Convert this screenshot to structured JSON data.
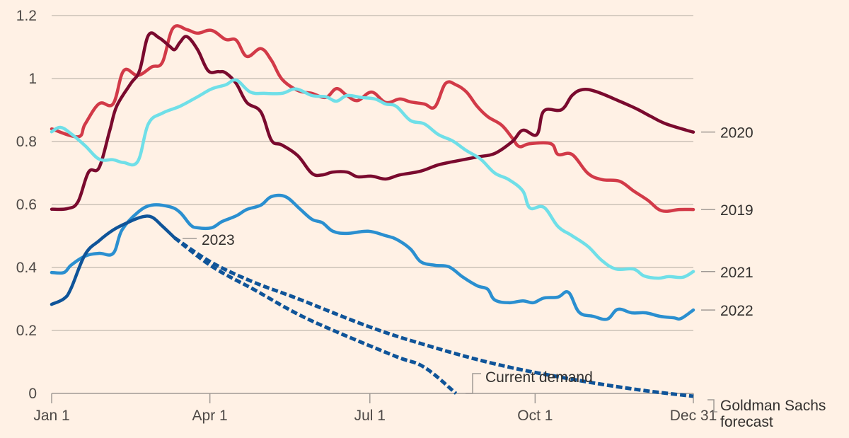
{
  "chart_data": {
    "type": "line",
    "title": "",
    "xlabel": "",
    "ylabel": "",
    "x_unit": "day of year",
    "xlim": [
      0,
      365
    ],
    "ylim": [
      0,
      1.2
    ],
    "grid": true,
    "y_ticks": [
      {
        "value": 0,
        "label": "0"
      },
      {
        "value": 0.2,
        "label": "0.2"
      },
      {
        "value": 0.4,
        "label": "0.4"
      },
      {
        "value": 0.6,
        "label": "0.6"
      },
      {
        "value": 0.8,
        "label": "0.8"
      },
      {
        "value": 1.0,
        "label": "1"
      },
      {
        "value": 1.2,
        "label": "1.2"
      }
    ],
    "x_ticks": [
      {
        "value": 0,
        "label": "Jan 1"
      },
      {
        "value": 90,
        "label": "Apr 1"
      },
      {
        "value": 181,
        "label": "Jul 1"
      },
      {
        "value": 275,
        "label": "Oct 1"
      },
      {
        "value": 365,
        "label": "Dec 31"
      }
    ],
    "legend": "direct labels at line ends (right)",
    "series": [
      {
        "name": "2019",
        "label": "2019",
        "color": "#d23a48",
        "style": "solid",
        "points": [
          [
            0,
            0.84
          ],
          [
            15,
            0.815
          ],
          [
            19,
            0.855
          ],
          [
            27,
            0.92
          ],
          [
            35,
            0.92
          ],
          [
            41,
            1.025
          ],
          [
            49,
            1.01
          ],
          [
            57,
            1.037
          ],
          [
            63,
            1.052
          ],
          [
            69,
            1.16
          ],
          [
            77,
            1.155
          ],
          [
            83,
            1.144
          ],
          [
            91,
            1.153
          ],
          [
            99,
            1.124
          ],
          [
            105,
            1.122
          ],
          [
            111,
            1.07
          ],
          [
            119,
            1.095
          ],
          [
            125,
            1.058
          ],
          [
            131,
            0.998
          ],
          [
            140,
            0.962
          ],
          [
            148,
            0.953
          ],
          [
            156,
            0.94
          ],
          [
            162,
            0.968
          ],
          [
            168,
            0.946
          ],
          [
            174,
            0.93
          ],
          [
            182,
            0.957
          ],
          [
            190,
            0.924
          ],
          [
            198,
            0.935
          ],
          [
            204,
            0.926
          ],
          [
            212,
            0.919
          ],
          [
            218,
            0.91
          ],
          [
            224,
            0.984
          ],
          [
            230,
            0.98
          ],
          [
            236,
            0.957
          ],
          [
            242,
            0.912
          ],
          [
            248,
            0.879
          ],
          [
            256,
            0.852
          ],
          [
            262,
            0.811
          ],
          [
            266,
            0.784
          ],
          [
            272,
            0.793
          ],
          [
            284,
            0.793
          ],
          [
            288,
            0.759
          ],
          [
            296,
            0.759
          ],
          [
            305,
            0.699
          ],
          [
            313,
            0.679
          ],
          [
            323,
            0.674
          ],
          [
            331,
            0.643
          ],
          [
            339,
            0.614
          ],
          [
            347,
            0.58
          ],
          [
            357,
            0.584
          ],
          [
            365,
            0.584
          ]
        ]
      },
      {
        "name": "2020",
        "label": "2020",
        "color": "#7a0a2e",
        "style": "solid",
        "points": [
          [
            0,
            0.585
          ],
          [
            9,
            0.587
          ],
          [
            15,
            0.609
          ],
          [
            21,
            0.703
          ],
          [
            27,
            0.717
          ],
          [
            33,
            0.834
          ],
          [
            37,
            0.912
          ],
          [
            45,
            0.984
          ],
          [
            50,
            1.025
          ],
          [
            55,
            1.137
          ],
          [
            61,
            1.13
          ],
          [
            67,
            1.103
          ],
          [
            70,
            1.092
          ],
          [
            73,
            1.115
          ],
          [
            77,
            1.133
          ],
          [
            83,
            1.092
          ],
          [
            89,
            1.025
          ],
          [
            95,
            1.022
          ],
          [
            99,
            1.018
          ],
          [
            105,
            0.984
          ],
          [
            111,
            0.924
          ],
          [
            119,
            0.894
          ],
          [
            125,
            0.804
          ],
          [
            131,
            0.789
          ],
          [
            140,
            0.755
          ],
          [
            148,
            0.699
          ],
          [
            154,
            0.694
          ],
          [
            160,
            0.703
          ],
          [
            168,
            0.703
          ],
          [
            174,
            0.688
          ],
          [
            182,
            0.69
          ],
          [
            190,
            0.681
          ],
          [
            198,
            0.694
          ],
          [
            210,
            0.706
          ],
          [
            220,
            0.726
          ],
          [
            232,
            0.74
          ],
          [
            242,
            0.751
          ],
          [
            252,
            0.762
          ],
          [
            262,
            0.8
          ],
          [
            268,
            0.836
          ],
          [
            276,
            0.822
          ],
          [
            280,
            0.897
          ],
          [
            290,
            0.901
          ],
          [
            296,
            0.946
          ],
          [
            302,
            0.965
          ],
          [
            310,
            0.958
          ],
          [
            323,
            0.928
          ],
          [
            333,
            0.903
          ],
          [
            341,
            0.879
          ],
          [
            349,
            0.857
          ],
          [
            361,
            0.836
          ],
          [
            365,
            0.83
          ]
        ]
      },
      {
        "name": "2021",
        "label": "2021",
        "color": "#6fdfe8",
        "style": "solid",
        "points": [
          [
            0,
            0.831
          ],
          [
            5,
            0.845
          ],
          [
            11,
            0.825
          ],
          [
            19,
            0.787
          ],
          [
            27,
            0.744
          ],
          [
            35,
            0.742
          ],
          [
            41,
            0.733
          ],
          [
            49,
            0.737
          ],
          [
            55,
            0.856
          ],
          [
            63,
            0.89
          ],
          [
            73,
            0.912
          ],
          [
            83,
            0.942
          ],
          [
            91,
            0.967
          ],
          [
            99,
            0.98
          ],
          [
            105,
            0.995
          ],
          [
            113,
            0.957
          ],
          [
            121,
            0.953
          ],
          [
            131,
            0.953
          ],
          [
            139,
            0.967
          ],
          [
            148,
            0.946
          ],
          [
            156,
            0.942
          ],
          [
            162,
            0.928
          ],
          [
            168,
            0.946
          ],
          [
            176,
            0.94
          ],
          [
            184,
            0.935
          ],
          [
            190,
            0.919
          ],
          [
            196,
            0.912
          ],
          [
            204,
            0.867
          ],
          [
            212,
            0.856
          ],
          [
            220,
            0.822
          ],
          [
            228,
            0.802
          ],
          [
            236,
            0.771
          ],
          [
            244,
            0.744
          ],
          [
            252,
            0.7
          ],
          [
            260,
            0.679
          ],
          [
            268,
            0.643
          ],
          [
            272,
            0.589
          ],
          [
            280,
            0.591
          ],
          [
            288,
            0.53
          ],
          [
            296,
            0.501
          ],
          [
            305,
            0.467
          ],
          [
            313,
            0.422
          ],
          [
            321,
            0.395
          ],
          [
            331,
            0.395
          ],
          [
            337,
            0.373
          ],
          [
            345,
            0.366
          ],
          [
            351,
            0.371
          ],
          [
            359,
            0.369
          ],
          [
            365,
            0.387
          ]
        ]
      },
      {
        "name": "2022",
        "label": "2022",
        "color": "#2a8fd0",
        "style": "solid",
        "points": [
          [
            0,
            0.384
          ],
          [
            7,
            0.384
          ],
          [
            11,
            0.407
          ],
          [
            19,
            0.436
          ],
          [
            27,
            0.445
          ],
          [
            35,
            0.445
          ],
          [
            40,
            0.519
          ],
          [
            49,
            0.575
          ],
          [
            57,
            0.598
          ],
          [
            67,
            0.593
          ],
          [
            73,
            0.575
          ],
          [
            79,
            0.535
          ],
          [
            83,
            0.526
          ],
          [
            91,
            0.526
          ],
          [
            97,
            0.546
          ],
          [
            105,
            0.564
          ],
          [
            111,
            0.584
          ],
          [
            119,
            0.598
          ],
          [
            125,
            0.625
          ],
          [
            133,
            0.625
          ],
          [
            141,
            0.587
          ],
          [
            148,
            0.553
          ],
          [
            154,
            0.542
          ],
          [
            160,
            0.515
          ],
          [
            168,
            0.508
          ],
          [
            180,
            0.515
          ],
          [
            190,
            0.501
          ],
          [
            196,
            0.49
          ],
          [
            204,
            0.459
          ],
          [
            210,
            0.418
          ],
          [
            218,
            0.407
          ],
          [
            226,
            0.402
          ],
          [
            234,
            0.369
          ],
          [
            242,
            0.342
          ],
          [
            248,
            0.331
          ],
          [
            252,
            0.297
          ],
          [
            260,
            0.288
          ],
          [
            268,
            0.294
          ],
          [
            274,
            0.288
          ],
          [
            280,
            0.303
          ],
          [
            288,
            0.306
          ],
          [
            294,
            0.321
          ],
          [
            300,
            0.258
          ],
          [
            308,
            0.245
          ],
          [
            316,
            0.236
          ],
          [
            322,
            0.267
          ],
          [
            330,
            0.256
          ],
          [
            338,
            0.256
          ],
          [
            346,
            0.245
          ],
          [
            354,
            0.24
          ],
          [
            358,
            0.238
          ],
          [
            365,
            0.265
          ]
        ]
      },
      {
        "name": "2023",
        "label": "2023",
        "color": "#0f5499",
        "style": "solid",
        "points": [
          [
            0,
            0.283
          ],
          [
            7,
            0.301
          ],
          [
            11,
            0.333
          ],
          [
            19,
            0.441
          ],
          [
            27,
            0.485
          ],
          [
            35,
            0.519
          ],
          [
            43,
            0.542
          ],
          [
            51,
            0.56
          ],
          [
            57,
            0.56
          ],
          [
            63,
            0.531
          ],
          [
            70,
            0.494
          ]
        ]
      },
      {
        "name": "Goldman Sachs forecast",
        "label": "Goldman Sachs forecast",
        "color": "#0f5499",
        "style": "dashed",
        "points": [
          [
            70,
            0.494
          ],
          [
            91,
            0.416
          ],
          [
            115,
            0.353
          ],
          [
            140,
            0.301
          ],
          [
            180,
            0.213
          ],
          [
            212,
            0.155
          ],
          [
            252,
            0.094
          ],
          [
            292,
            0.049
          ],
          [
            332,
            0.013
          ],
          [
            365,
            -0.009
          ]
        ]
      },
      {
        "name": "Current demand",
        "label": "Current demand",
        "color": "#0f5499",
        "style": "dashed",
        "points": [
          [
            70,
            0.494
          ],
          [
            91,
            0.404
          ],
          [
            115,
            0.33
          ],
          [
            140,
            0.252
          ],
          [
            164,
            0.191
          ],
          [
            196,
            0.117
          ],
          [
            212,
            0.083
          ],
          [
            230,
            0.0
          ]
        ]
      }
    ],
    "annotations": [
      {
        "text": "2023",
        "anchor_series": "2023"
      },
      {
        "text": "Current demand",
        "anchor_series": "Current demand"
      },
      {
        "text": "Goldman Sachs forecast",
        "lines": [
          "Goldman Sachs",
          "forecast"
        ],
        "anchor_series": "Goldman Sachs forecast"
      }
    ]
  }
}
